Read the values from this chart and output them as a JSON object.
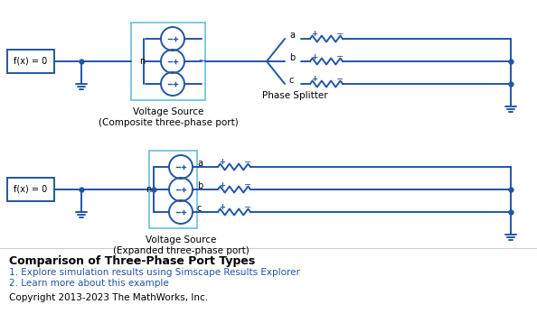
{
  "bg_color": "#ffffff",
  "line_color": "#2255A4",
  "box_color": "#7EC8E3",
  "text_color": "#000000",
  "title": "Comparison of Three-Phase Port Types",
  "line1": "1. Explore simulation results using Simscape Results Explorer",
  "line2": "2. Learn more about this example",
  "copyright": "Copyright 2013-2023 The MathWorks, Inc.",
  "circuit1_label": "Voltage Source\n(Composite three-phase port)",
  "circuit2_label": "Voltage Source\n(Expanded three-phase port)",
  "phase_splitter_label": "Phase Splitter"
}
